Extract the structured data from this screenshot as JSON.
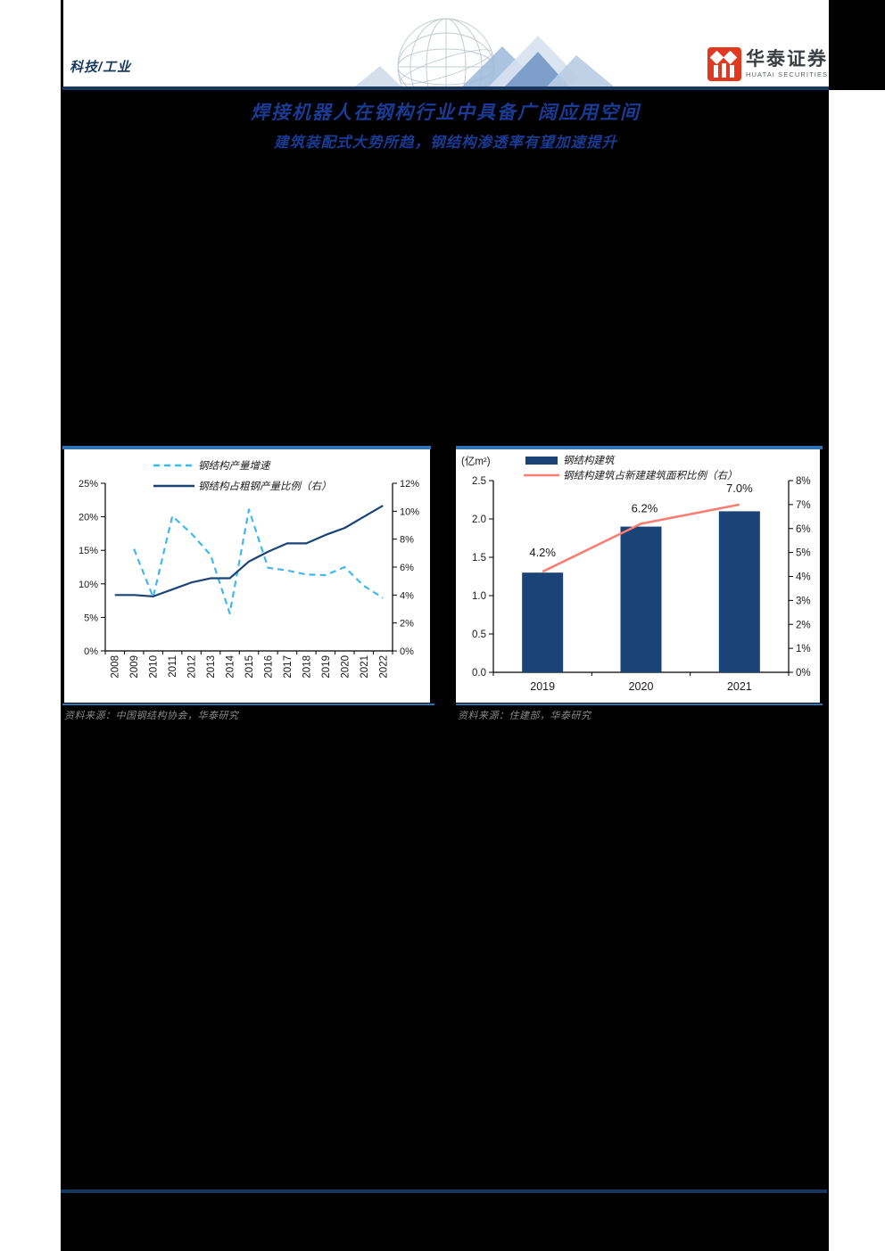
{
  "header": {
    "category": "科技/工业",
    "brand": {
      "name_cn": "华泰证券",
      "name_en": "HUATAI SECURITIES"
    }
  },
  "titles": {
    "title": "焊接机器人在钢构行业中具备广阔应用空间",
    "subtitle": "建筑装配式大势所趋，钢结构渗透率有望加速提升"
  },
  "sources": {
    "left": "资料来源：中国钢结构协会，华泰研究",
    "right": "资料来源：住建部，华泰研究"
  },
  "colors": {
    "rule_navy": "#17375E",
    "title_blue": "#1A3A94",
    "chart_navy": "#1A4377",
    "cyan_dashed": "#3FB9EC",
    "coral_line": "#F87D72",
    "thin_line_blue": "#2E74B5",
    "source_gray": "#8a8a8a",
    "axis_text": "#1a1a1a",
    "logo_red": "#E0391F"
  },
  "chart_data": [
    {
      "type": "line",
      "title": "",
      "categories": [
        "2008",
        "2009",
        "2010",
        "2011",
        "2012",
        "2013",
        "2014",
        "2015",
        "2016",
        "2017",
        "2018",
        "2019",
        "2020",
        "2021",
        "2022"
      ],
      "series": [
        {
          "name": "钢结构产量增速",
          "axis": "left",
          "style": "dashed",
          "color": "#3FB9EC",
          "values": [
            null,
            15.2,
            8.0,
            20.1,
            17.5,
            14.3,
            5.6,
            21.1,
            12.4,
            12.0,
            11.4,
            11.3,
            12.5,
            9.7,
            7.9
          ]
        },
        {
          "name": "钢结构占粗钢产量比例（右）",
          "axis": "right",
          "style": "solid",
          "color": "#1A4377",
          "values": [
            4.0,
            4.0,
            3.9,
            4.4,
            4.9,
            5.2,
            5.2,
            6.4,
            7.1,
            7.7,
            7.7,
            8.3,
            8.8,
            9.6,
            10.4
          ]
        }
      ],
      "left_axis": {
        "min": 0,
        "max": 25,
        "step": 5,
        "format": "percent"
      },
      "right_axis": {
        "min": 0,
        "max": 12,
        "step": 2,
        "format": "percent"
      },
      "grid": false,
      "legend_position": "top"
    },
    {
      "type": "bar",
      "title": "",
      "unit_label": "(亿m²)",
      "categories": [
        "2019",
        "2020",
        "2021"
      ],
      "series": [
        {
          "name": "钢结构建筑",
          "kind": "bar",
          "axis": "left",
          "color": "#1A4377",
          "values": [
            1.3,
            1.9,
            2.1
          ]
        },
        {
          "name": "钢结构建筑占新建建筑面积比例（右）",
          "kind": "line",
          "axis": "right",
          "color": "#F87D72",
          "values": [
            4.2,
            6.2,
            7.0
          ],
          "point_labels": [
            "4.2%",
            "6.2%",
            "7.0%"
          ]
        }
      ],
      "left_axis": {
        "min": 0,
        "max": 2.5,
        "step": 0.5,
        "format": "decimal1"
      },
      "right_axis": {
        "min": 0,
        "max": 8,
        "step": 1,
        "format": "percent"
      },
      "grid": false,
      "legend_position": "top"
    }
  ]
}
